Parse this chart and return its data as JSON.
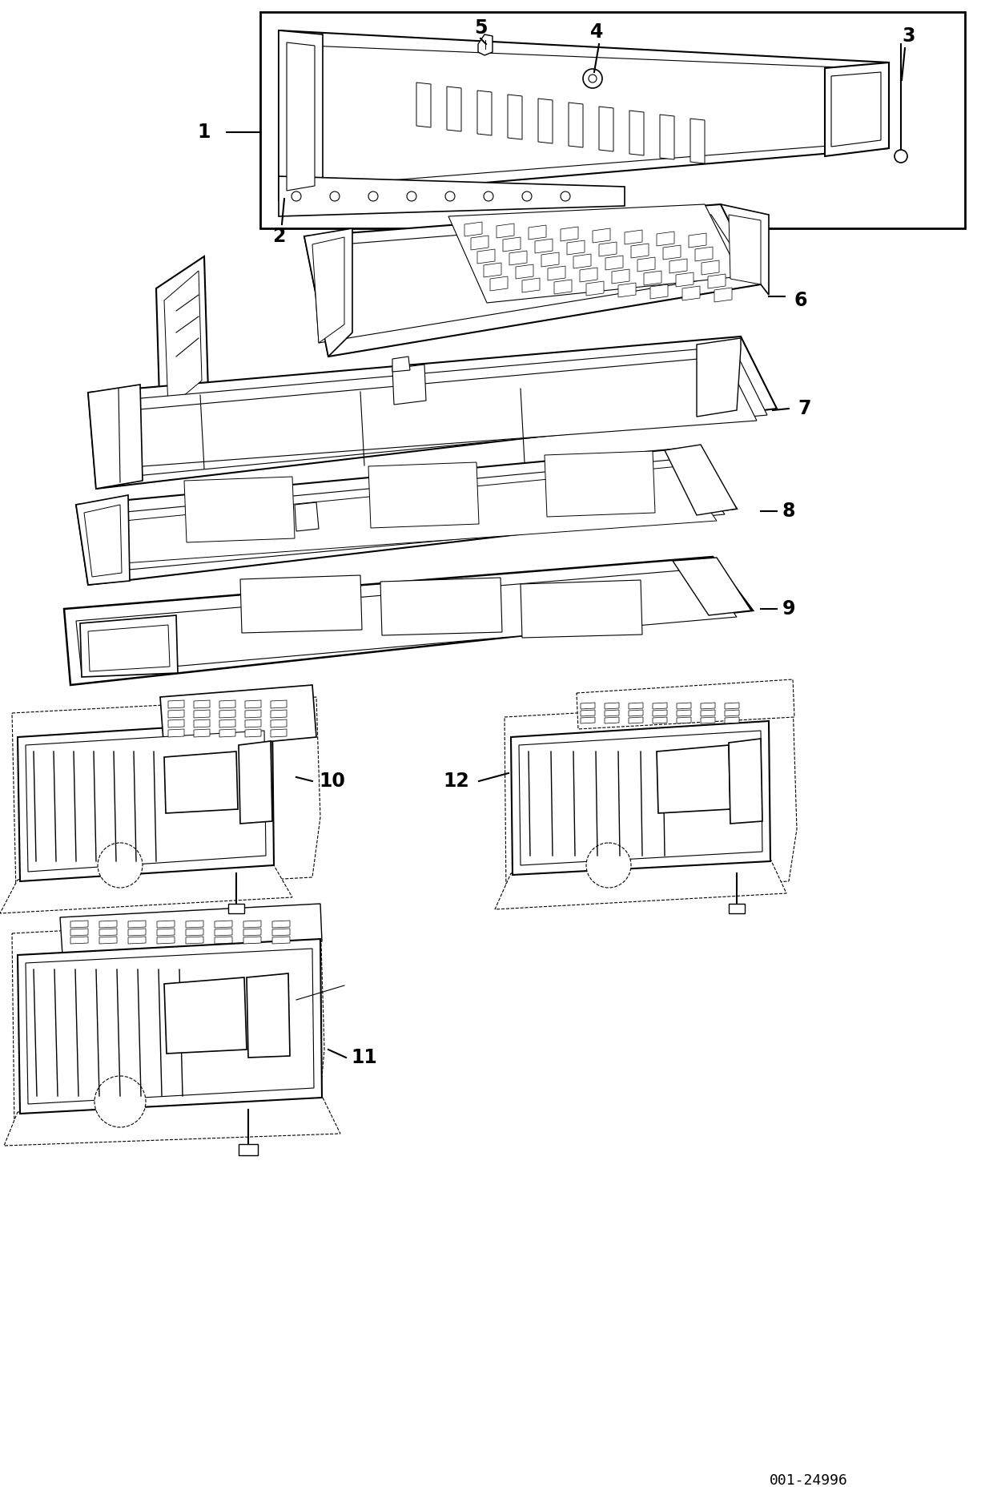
{
  "catalog_number": "001-24996",
  "background_color": "#ffffff",
  "line_color": "#000000",
  "fig_width": 12.25,
  "fig_height": 18.76,
  "dpi": 100
}
